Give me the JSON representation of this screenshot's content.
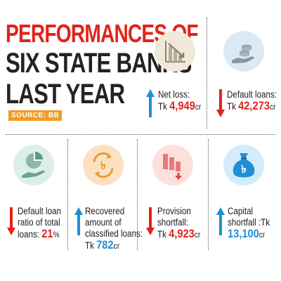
{
  "title": {
    "line1": "PERFORMANCES OF",
    "line2": "SIX STATE BANKS",
    "line3": "LAST YEAR"
  },
  "source": "SOURCE: BB",
  "stats": {
    "net_loss": {
      "label": "Net loss:",
      "prefix": "Tk ",
      "value": "4,949",
      "unit": "cr",
      "direction": "up",
      "icon": "declining-bar-chart-icon"
    },
    "default_loans": {
      "label": "Default loans:",
      "prefix": "Tk ",
      "value": "42,273",
      "unit": "cr",
      "direction": "down",
      "icon": "coins-in-hand-icon"
    },
    "default_ratio": {
      "label_line1": "Default loan",
      "label_line2": "ratio of total",
      "label_line3": "loans: ",
      "value": "21",
      "unit": "%",
      "direction": "down",
      "icon": "pie-chart-hand-icon"
    },
    "recovered": {
      "label_line1": "Recovered",
      "label_line2": "amount of",
      "label_line3": "classified loans:",
      "prefix": "Tk ",
      "value": "782",
      "unit": "cr",
      "direction": "up",
      "icon": "taka-recycle-icon"
    },
    "provision": {
      "label_line1": "Provision",
      "label_line2": "shortfall:",
      "prefix": "Tk ",
      "value": "4,923",
      "unit": "cr",
      "direction": "down",
      "icon": "falling-bars-icon"
    },
    "capital": {
      "label_line1": "Capital",
      "label_line2": "shortfall :Tk",
      "value": "13,100",
      "unit": "cr",
      "direction": "up",
      "icon": "taka-money-bag-icon"
    }
  },
  "colors": {
    "red": "#e2231a",
    "blue": "#1e8fd6",
    "orange": "#f39c1f",
    "circle_beige": "#efe9d9",
    "circle_light_blue": "#dce9f3",
    "circle_mint": "#dcefe6",
    "circle_light_orange": "#fbe1c2",
    "circle_pink": "#fbe0dc",
    "circle_sky": "#d3ecfa"
  }
}
